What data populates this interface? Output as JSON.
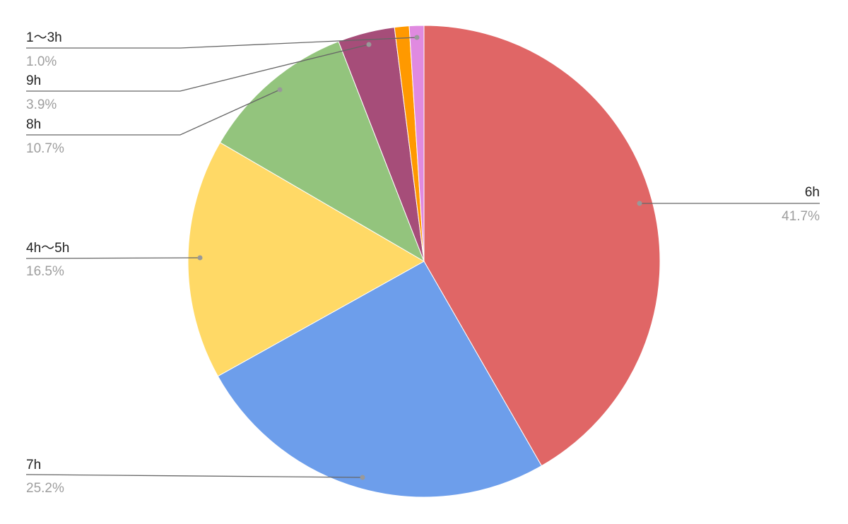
{
  "chart_data": {
    "type": "pie",
    "title": "",
    "start_angle": "top, clockwise",
    "slices": [
      {
        "label": "6h",
        "value": 41.7,
        "percent_label": "41.7%",
        "color": "#e06666"
      },
      {
        "label": "7h",
        "value": 25.2,
        "percent_label": "25.2%",
        "color": "#6d9eeb"
      },
      {
        "label": "4h〜5h",
        "value": 16.5,
        "percent_label": "16.5%",
        "color": "#ffd966"
      },
      {
        "label": "8h",
        "value": 10.7,
        "percent_label": "10.7%",
        "color": "#93c47d"
      },
      {
        "label": "9h",
        "value": 3.9,
        "percent_label": "3.9%",
        "color": "#a64d79"
      },
      {
        "label": "",
        "value": 1.0,
        "percent_label": "",
        "color": "#ff9900"
      },
      {
        "label": "1〜3h",
        "value": 1.0,
        "percent_label": "1.0%",
        "color": "#e08ae0"
      }
    ],
    "legend": "none (leader-line labels)"
  }
}
